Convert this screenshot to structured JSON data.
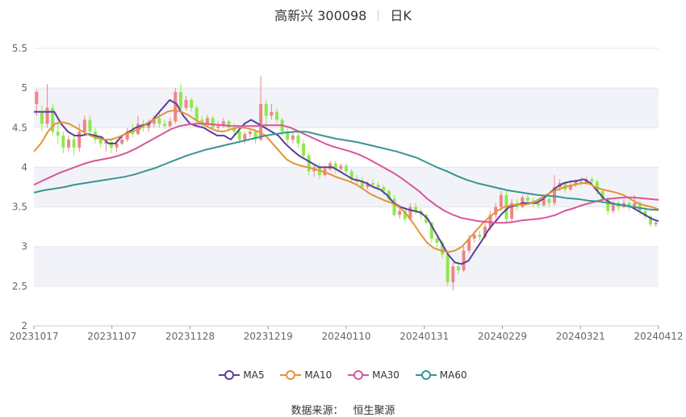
{
  "header": {
    "name_code": "高新兴 300098",
    "period": "日K"
  },
  "source": {
    "label": "数据来源：",
    "provider": "恒生聚源"
  },
  "colors": {
    "up": "#ef8585",
    "down": "#8ee84c",
    "MA5": "#5b3d9c",
    "MA10": "#e39439",
    "MA30": "#d9559a",
    "MA60": "#3a9394",
    "band": "#f2f3f8",
    "grid": "#e6e6e6"
  },
  "chart_data": {
    "type": "candlestick",
    "ylim": [
      2,
      5.5
    ],
    "yticks": [
      "2",
      "2.5",
      "3",
      "3.5",
      "4",
      "4.5",
      "5",
      "5.5"
    ],
    "xtick_labels": [
      "20231017",
      "20231107",
      "20231128",
      "20231219",
      "20240110",
      "20240131",
      "20240229",
      "20240321",
      "20240412"
    ],
    "candles": [
      [
        4.8,
        4.95,
        4.65,
        4.98
      ],
      [
        4.7,
        4.55,
        4.45,
        4.78
      ],
      [
        4.55,
        4.75,
        4.5,
        5.05
      ],
      [
        4.75,
        4.45,
        4.4,
        4.8
      ],
      [
        4.45,
        4.4,
        4.3,
        4.55
      ],
      [
        4.4,
        4.25,
        4.18,
        4.45
      ],
      [
        4.25,
        4.35,
        4.2,
        4.4
      ],
      [
        4.35,
        4.25,
        4.15,
        4.42
      ],
      [
        4.25,
        4.45,
        4.2,
        4.55
      ],
      [
        4.45,
        4.6,
        4.4,
        4.65
      ],
      [
        4.6,
        4.45,
        4.4,
        4.65
      ],
      [
        4.45,
        4.35,
        4.3,
        4.5
      ],
      [
        4.35,
        4.3,
        4.25,
        4.4
      ],
      [
        4.3,
        4.32,
        4.2,
        4.35
      ],
      [
        4.32,
        4.25,
        4.18,
        4.35
      ],
      [
        4.25,
        4.3,
        4.2,
        4.35
      ],
      [
        4.3,
        4.35,
        4.28,
        4.4
      ],
      [
        4.35,
        4.45,
        4.32,
        4.5
      ],
      [
        4.45,
        4.42,
        4.38,
        4.55
      ],
      [
        4.42,
        4.55,
        4.4,
        4.65
      ],
      [
        4.55,
        4.5,
        4.45,
        4.6
      ],
      [
        4.5,
        4.55,
        4.45,
        4.6
      ],
      [
        4.55,
        4.62,
        4.5,
        4.65
      ],
      [
        4.62,
        4.55,
        4.5,
        4.68
      ],
      [
        4.55,
        4.52,
        4.48,
        4.6
      ],
      [
        4.52,
        4.58,
        4.5,
        4.62
      ],
      [
        4.58,
        4.95,
        4.55,
        5.0
      ],
      [
        4.95,
        4.75,
        4.7,
        5.05
      ],
      [
        4.75,
        4.85,
        4.72,
        4.9
      ],
      [
        4.85,
        4.75,
        4.7,
        4.88
      ],
      [
        4.75,
        4.6,
        4.55,
        4.78
      ],
      [
        4.6,
        4.55,
        4.5,
        4.65
      ],
      [
        4.55,
        4.62,
        4.5,
        4.66
      ],
      [
        4.62,
        4.5,
        4.48,
        4.65
      ],
      [
        4.5,
        4.52,
        4.45,
        4.58
      ],
      [
        4.52,
        4.58,
        4.5,
        4.62
      ],
      [
        4.58,
        4.5,
        4.45,
        4.6
      ],
      [
        4.5,
        4.45,
        4.4,
        4.55
      ],
      [
        4.45,
        4.35,
        4.3,
        4.5
      ],
      [
        4.35,
        4.42,
        4.3,
        4.45
      ],
      [
        4.42,
        4.45,
        4.38,
        4.48
      ],
      [
        4.45,
        4.35,
        4.3,
        4.48
      ],
      [
        4.35,
        4.8,
        4.33,
        5.15
      ],
      [
        4.8,
        4.65,
        4.5,
        4.85
      ],
      [
        4.65,
        4.7,
        4.6,
        4.8
      ],
      [
        4.7,
        4.6,
        4.55,
        4.75
      ],
      [
        4.6,
        4.45,
        4.4,
        4.62
      ],
      [
        4.45,
        4.35,
        4.3,
        4.5
      ],
      [
        4.35,
        4.4,
        4.3,
        4.45
      ],
      [
        4.4,
        4.3,
        4.25,
        4.45
      ],
      [
        4.3,
        4.15,
        4.1,
        4.35
      ],
      [
        4.15,
        3.95,
        3.9,
        4.18
      ],
      [
        3.95,
        4.0,
        3.88,
        4.05
      ],
      [
        4.0,
        3.9,
        3.85,
        4.05
      ],
      [
        3.9,
        3.98,
        3.88,
        4.02
      ],
      [
        3.98,
        4.05,
        3.95,
        4.08
      ],
      [
        4.05,
        3.98,
        3.92,
        4.08
      ],
      [
        3.98,
        4.02,
        3.95,
        4.05
      ],
      [
        4.02,
        3.95,
        3.92,
        4.05
      ],
      [
        3.95,
        3.85,
        3.8,
        3.98
      ],
      [
        3.85,
        3.82,
        3.78,
        3.9
      ],
      [
        3.82,
        3.75,
        3.72,
        3.88
      ],
      [
        3.75,
        3.8,
        3.72,
        3.82
      ],
      [
        3.8,
        3.78,
        3.75,
        3.85
      ],
      [
        3.78,
        3.75,
        3.7,
        3.82
      ],
      [
        3.75,
        3.7,
        3.65,
        3.78
      ],
      [
        3.7,
        3.6,
        3.55,
        3.72
      ],
      [
        3.6,
        3.4,
        3.38,
        3.65
      ],
      [
        3.4,
        3.45,
        3.35,
        3.5
      ],
      [
        3.45,
        3.35,
        3.32,
        3.5
      ],
      [
        3.35,
        3.5,
        3.33,
        3.55
      ],
      [
        3.5,
        3.45,
        3.4,
        3.55
      ],
      [
        3.45,
        3.4,
        3.35,
        3.48
      ],
      [
        3.4,
        3.3,
        3.28,
        3.42
      ],
      [
        3.3,
        3.1,
        3.05,
        3.32
      ],
      [
        3.1,
        3.05,
        3.0,
        3.15
      ],
      [
        3.05,
        2.9,
        2.85,
        3.08
      ],
      [
        2.9,
        2.55,
        2.5,
        2.95
      ],
      [
        2.55,
        2.75,
        2.45,
        2.8
      ],
      [
        2.75,
        2.7,
        2.65,
        2.8
      ],
      [
        2.7,
        2.95,
        2.68,
        3.0
      ],
      [
        2.95,
        3.1,
        2.92,
        3.15
      ],
      [
        3.1,
        3.15,
        3.05,
        3.2
      ],
      [
        3.15,
        3.12,
        3.08,
        3.2
      ],
      [
        3.12,
        3.25,
        3.1,
        3.3
      ],
      [
        3.25,
        3.4,
        3.2,
        3.45
      ],
      [
        3.4,
        3.5,
        3.35,
        3.55
      ],
      [
        3.5,
        3.65,
        3.45,
        3.7
      ],
      [
        3.65,
        3.35,
        3.3,
        3.7
      ],
      [
        3.35,
        3.55,
        3.3,
        3.6
      ],
      [
        3.55,
        3.5,
        3.45,
        3.6
      ],
      [
        3.5,
        3.62,
        3.48,
        3.65
      ],
      [
        3.62,
        3.58,
        3.55,
        3.65
      ],
      [
        3.58,
        3.55,
        3.5,
        3.62
      ],
      [
        3.55,
        3.52,
        3.48,
        3.58
      ],
      [
        3.52,
        3.6,
        3.5,
        3.62
      ],
      [
        3.6,
        3.55,
        3.5,
        3.62
      ],
      [
        3.55,
        3.75,
        3.52,
        3.9
      ],
      [
        3.75,
        3.8,
        3.7,
        3.85
      ],
      [
        3.8,
        3.72,
        3.68,
        3.82
      ],
      [
        3.72,
        3.78,
        3.7,
        3.82
      ],
      [
        3.78,
        3.82,
        3.75,
        3.85
      ],
      [
        3.82,
        3.8,
        3.76,
        3.88
      ],
      [
        3.8,
        3.85,
        3.78,
        3.88
      ],
      [
        3.85,
        3.82,
        3.78,
        3.88
      ],
      [
        3.82,
        3.7,
        3.65,
        3.85
      ],
      [
        3.7,
        3.6,
        3.55,
        3.72
      ],
      [
        3.6,
        3.45,
        3.4,
        3.62
      ],
      [
        3.45,
        3.55,
        3.42,
        3.58
      ],
      [
        3.55,
        3.5,
        3.45,
        3.58
      ],
      [
        3.5,
        3.55,
        3.48,
        3.6
      ],
      [
        3.55,
        3.5,
        3.45,
        3.58
      ],
      [
        3.5,
        3.55,
        3.48,
        3.65
      ],
      [
        3.55,
        3.45,
        3.4,
        3.58
      ],
      [
        3.45,
        3.38,
        3.35,
        3.5
      ],
      [
        3.38,
        3.28,
        3.25,
        3.4
      ],
      [
        3.28,
        3.3,
        3.25,
        3.33
      ]
    ],
    "series": [
      {
        "name": "MA5",
        "values": [
          4.7,
          4.7,
          4.7,
          4.7,
          4.55,
          4.45,
          4.4,
          4.4,
          4.42,
          4.4,
          4.38,
          4.3,
          4.3,
          4.4,
          4.45,
          4.5,
          4.53,
          4.55,
          4.65,
          4.75,
          4.85,
          4.8,
          4.65,
          4.55,
          4.52,
          4.5,
          4.45,
          4.4,
          4.4,
          4.35,
          4.45,
          4.55,
          4.6,
          4.55,
          4.5,
          4.45,
          4.4,
          4.3,
          4.22,
          4.15,
          4.1,
          4.05,
          4.0,
          4.0,
          4.0,
          3.95,
          3.9,
          3.85,
          3.83,
          3.8,
          3.75,
          3.72,
          3.65,
          3.55,
          3.5,
          3.47,
          3.45,
          3.43,
          3.35,
          3.2,
          3.05,
          2.9,
          2.8,
          2.78,
          2.82,
          2.95,
          3.08,
          3.22,
          3.32,
          3.42,
          3.5,
          3.52,
          3.55,
          3.55,
          3.55,
          3.6,
          3.68,
          3.75,
          3.8,
          3.82,
          3.83,
          3.85,
          3.8,
          3.7,
          3.6,
          3.55,
          3.53,
          3.52,
          3.5,
          3.45,
          3.4,
          3.35,
          3.32
        ]
      },
      {
        "name": "MA10",
        "values": [
          4.2,
          4.3,
          4.45,
          4.55,
          4.57,
          4.55,
          4.5,
          4.45,
          4.4,
          4.37,
          4.35,
          4.35,
          4.38,
          4.42,
          4.45,
          4.48,
          4.55,
          4.6,
          4.65,
          4.7,
          4.72,
          4.7,
          4.66,
          4.6,
          4.55,
          4.5,
          4.46,
          4.45,
          4.48,
          4.5,
          4.5,
          4.48,
          4.45,
          4.4,
          4.3,
          4.2,
          4.1,
          4.05,
          4.02,
          4.0,
          3.98,
          3.95,
          3.92,
          3.88,
          3.85,
          3.82,
          3.78,
          3.72,
          3.66,
          3.62,
          3.58,
          3.55,
          3.5,
          3.42,
          3.3,
          3.17,
          3.05,
          2.98,
          2.95,
          2.93,
          2.95,
          3.0,
          3.1,
          3.2,
          3.3,
          3.38,
          3.45,
          3.5,
          3.52,
          3.53,
          3.53,
          3.55,
          3.6,
          3.65,
          3.7,
          3.73,
          3.76,
          3.78,
          3.8,
          3.8,
          3.75,
          3.72,
          3.7,
          3.68,
          3.65,
          3.6,
          3.55,
          3.52,
          3.5,
          3.47
        ]
      },
      {
        "name": "MA30",
        "values": [
          3.78,
          3.83,
          3.88,
          3.93,
          3.97,
          4.01,
          4.05,
          4.08,
          4.1,
          4.12,
          4.15,
          4.19,
          4.24,
          4.3,
          4.36,
          4.42,
          4.48,
          4.52,
          4.54,
          4.55,
          4.55,
          4.54,
          4.53,
          4.52,
          4.52,
          4.52,
          4.52,
          4.53,
          4.53,
          4.53,
          4.5,
          4.45,
          4.4,
          4.35,
          4.3,
          4.26,
          4.23,
          4.2,
          4.16,
          4.11,
          4.05,
          3.99,
          3.93,
          3.86,
          3.78,
          3.7,
          3.6,
          3.52,
          3.45,
          3.4,
          3.36,
          3.34,
          3.32,
          3.31,
          3.3,
          3.3,
          3.31,
          3.33,
          3.34,
          3.35,
          3.37,
          3.4,
          3.45,
          3.48,
          3.52,
          3.55,
          3.58,
          3.6,
          3.61,
          3.62,
          3.62,
          3.61,
          3.6,
          3.59
        ]
      },
      {
        "name": "MA60",
        "values": [
          3.68,
          3.71,
          3.73,
          3.75,
          3.78,
          3.8,
          3.82,
          3.84,
          3.86,
          3.88,
          3.91,
          3.95,
          3.99,
          4.04,
          4.09,
          4.14,
          4.18,
          4.22,
          4.25,
          4.28,
          4.31,
          4.34,
          4.37,
          4.4,
          4.42,
          4.44,
          4.45,
          4.45,
          4.42,
          4.39,
          4.36,
          4.34,
          4.32,
          4.29,
          4.26,
          4.23,
          4.2,
          4.16,
          4.12,
          4.06,
          4.0,
          3.95,
          3.89,
          3.84,
          3.8,
          3.77,
          3.74,
          3.71,
          3.69,
          3.67,
          3.65,
          3.64,
          3.63,
          3.61,
          3.6,
          3.58,
          3.57,
          3.55,
          3.53,
          3.51,
          3.49,
          3.47,
          3.46
        ]
      }
    ]
  }
}
